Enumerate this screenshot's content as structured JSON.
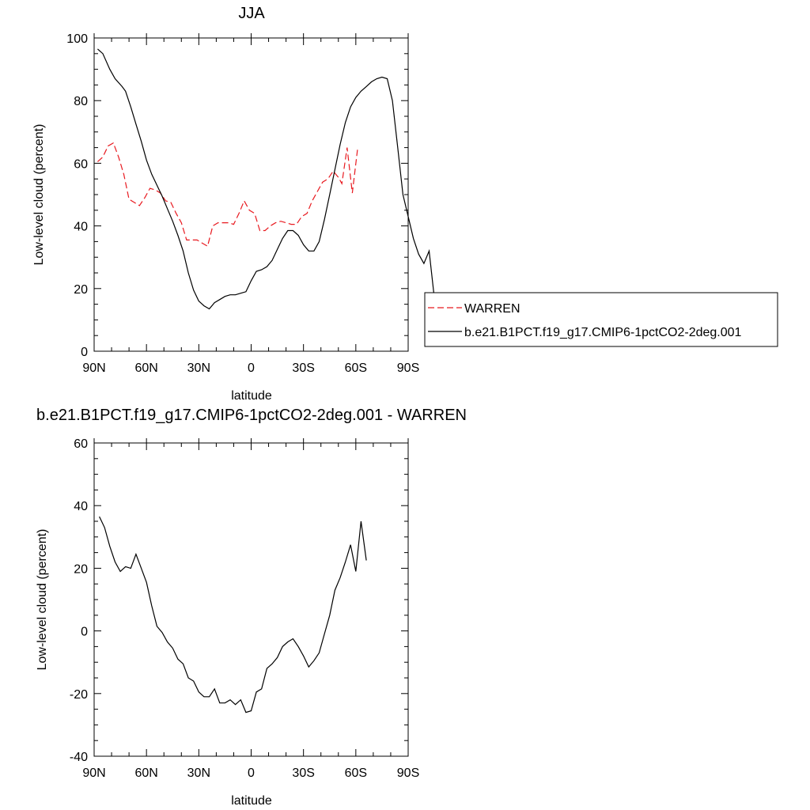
{
  "chart_data": [
    {
      "type": "line",
      "title": "JJA",
      "xlabel": "latitude",
      "ylabel": "Low-level cloud (percent)",
      "xlim": [
        90,
        -90
      ],
      "ylim": [
        0,
        100
      ],
      "x_ticks": [
        90,
        60,
        30,
        0,
        -30,
        -60,
        -90
      ],
      "x_tick_labels": [
        "90N",
        "60N",
        "30N",
        "0",
        "30S",
        "60S",
        "90S"
      ],
      "y_ticks": [
        0,
        20,
        40,
        60,
        80,
        100
      ],
      "y_tick_labels": [
        "0",
        "20",
        "40",
        "60",
        "80",
        "100"
      ],
      "legend_position": "right",
      "series": [
        {
          "name": "WARREN",
          "color": "#e8191f",
          "dash": "dashed",
          "points": [
            [
              88,
              60.5
            ],
            [
              85,
              62
            ],
            [
              82,
              65.5
            ],
            [
              79,
              66.5
            ],
            [
              76,
              62
            ],
            [
              73,
              56.5
            ],
            [
              70,
              48.5
            ],
            [
              67,
              47.5
            ],
            [
              64,
              46.5
            ],
            [
              61,
              49
            ],
            [
              58,
              52
            ],
            [
              55,
              51.5
            ],
            [
              52,
              50.5
            ],
            [
              49,
              48
            ],
            [
              46,
              47.5
            ],
            [
              43,
              44
            ],
            [
              40,
              41
            ],
            [
              37,
              35.5
            ],
            [
              34,
              35.5
            ],
            [
              31,
              35.5
            ],
            [
              28,
              34.5
            ],
            [
              25,
              33.5
            ],
            [
              22,
              40
            ],
            [
              19,
              41
            ],
            [
              16,
              41
            ],
            [
              13,
              41
            ],
            [
              10,
              40.5
            ],
            [
              7,
              44
            ],
            [
              4,
              48
            ],
            [
              1,
              45
            ],
            [
              -2,
              44
            ],
            [
              -5,
              38.5
            ],
            [
              -8,
              38.5
            ],
            [
              -11,
              40
            ],
            [
              -14,
              41
            ],
            [
              -17,
              41.5
            ],
            [
              -20,
              41
            ],
            [
              -23,
              40.5
            ],
            [
              -26,
              40.5
            ],
            [
              -29,
              43
            ],
            [
              -32,
              44
            ],
            [
              -35,
              48
            ],
            [
              -38,
              51
            ],
            [
              -41,
              54
            ],
            [
              -44,
              55
            ],
            [
              -47,
              57.5
            ],
            [
              -50,
              55.5
            ],
            [
              -52,
              53.5
            ],
            [
              -55,
              65
            ],
            [
              -58,
              50.5
            ],
            [
              -61,
              64.5
            ]
          ]
        },
        {
          "name": "b.e21.B1PCT.f19_g17.CMIP6-1pctCO2-2deg.001",
          "color": "#000000",
          "dash": "solid",
          "points": [
            [
              88,
              96.5
            ],
            [
              85,
              95
            ],
            [
              81,
              90
            ],
            [
              78,
              87
            ],
            [
              74,
              84.5
            ],
            [
              72,
              83
            ],
            [
              69,
              78
            ],
            [
              66,
              72.5
            ],
            [
              63,
              67
            ],
            [
              60,
              61
            ],
            [
              57,
              56.5
            ],
            [
              54,
              53
            ],
            [
              51,
              49.5
            ],
            [
              48,
              45.5
            ],
            [
              45,
              41.5
            ],
            [
              42,
              37
            ],
            [
              39,
              32
            ],
            [
              36,
              25
            ],
            [
              33,
              19.5
            ],
            [
              30,
              16
            ],
            [
              27,
              14.5
            ],
            [
              24,
              13.5
            ],
            [
              21,
              15.5
            ],
            [
              18,
              16.5
            ],
            [
              15,
              17.5
            ],
            [
              12,
              18
            ],
            [
              9,
              18
            ],
            [
              6,
              18.5
            ],
            [
              3,
              19
            ],
            [
              0,
              22.5
            ],
            [
              -3,
              25.5
            ],
            [
              -6,
              26
            ],
            [
              -9,
              27
            ],
            [
              -12,
              29
            ],
            [
              -15,
              32.5
            ],
            [
              -18,
              36
            ],
            [
              -21,
              38.5
            ],
            [
              -24,
              38.5
            ],
            [
              -27,
              37
            ],
            [
              -30,
              34
            ],
            [
              -33,
              32
            ],
            [
              -36,
              32
            ],
            [
              -39,
              35
            ],
            [
              -42,
              42
            ],
            [
              -45,
              50
            ],
            [
              -48,
              58
            ],
            [
              -51,
              66
            ],
            [
              -54,
              73
            ],
            [
              -57,
              78
            ],
            [
              -60,
              81
            ],
            [
              -63,
              83
            ],
            [
              -66,
              84.5
            ],
            [
              -69,
              86
            ],
            [
              -72,
              87
            ],
            [
              -75,
              87.5
            ],
            [
              -78,
              87
            ],
            [
              -81,
              80
            ],
            [
              -84,
              65
            ],
            [
              -87,
              50
            ],
            [
              -90,
              43
            ],
            [
              -93,
              36
            ],
            [
              -96,
              31
            ],
            [
              -99,
              28
            ],
            [
              -102,
              32
            ],
            [
              -105,
              17
            ]
          ]
        }
      ]
    },
    {
      "type": "line",
      "title": "b.e21.B1PCT.f19_g17.CMIP6-1pctCO2-2deg.001 - WARREN",
      "xlabel": "latitude",
      "ylabel": "Low-level cloud (percent)",
      "xlim": [
        90,
        -90
      ],
      "ylim": [
        -40,
        60
      ],
      "x_ticks": [
        90,
        60,
        30,
        0,
        -30,
        -60,
        -90
      ],
      "x_tick_labels": [
        "90N",
        "60N",
        "30N",
        "0",
        "30S",
        "60S",
        "90S"
      ],
      "y_ticks": [
        -40,
        -20,
        0,
        20,
        40,
        60
      ],
      "y_tick_labels": [
        "-40",
        "-20",
        "0",
        "20",
        "40",
        "60"
      ],
      "series": [
        {
          "color": "#000000",
          "dash": "solid",
          "points": [
            [
              87,
              36.5
            ],
            [
              84,
              33
            ],
            [
              81,
              27
            ],
            [
              78,
              22
            ],
            [
              75,
              19
            ],
            [
              72,
              20.5
            ],
            [
              69,
              20
            ],
            [
              66,
              24.5
            ],
            [
              63,
              20
            ],
            [
              60,
              15.5
            ],
            [
              57,
              8
            ],
            [
              54,
              1.5
            ],
            [
              51,
              -0.5
            ],
            [
              48,
              -3.5
            ],
            [
              45,
              -5.5
            ],
            [
              42,
              -9
            ],
            [
              39,
              -10.5
            ],
            [
              36,
              -15
            ],
            [
              33,
              -16
            ],
            [
              30,
              -19.5
            ],
            [
              27,
              -21
            ],
            [
              24,
              -21
            ],
            [
              21,
              -18.5
            ],
            [
              18,
              -23
            ],
            [
              15,
              -23
            ],
            [
              12,
              -22
            ],
            [
              9,
              -23.5
            ],
            [
              6,
              -22
            ],
            [
              3,
              -26
            ],
            [
              0,
              -25.5
            ],
            [
              -3,
              -19.5
            ],
            [
              -6,
              -18.5
            ],
            [
              -9,
              -12
            ],
            [
              -12,
              -10.5
            ],
            [
              -15,
              -8.5
            ],
            [
              -18,
              -5
            ],
            [
              -21,
              -3.5
            ],
            [
              -24,
              -2.5
            ],
            [
              -27,
              -5
            ],
            [
              -30,
              -8
            ],
            [
              -33,
              -11.5
            ],
            [
              -36,
              -9.5
            ],
            [
              -39,
              -7
            ],
            [
              -42,
              -1
            ],
            [
              -45,
              5
            ],
            [
              -48,
              13
            ],
            [
              -51,
              17
            ],
            [
              -54,
              22
            ],
            [
              -57,
              27.5
            ],
            [
              -60,
              19
            ],
            [
              -63,
              35
            ],
            [
              -66,
              22.5
            ]
          ]
        }
      ]
    }
  ]
}
